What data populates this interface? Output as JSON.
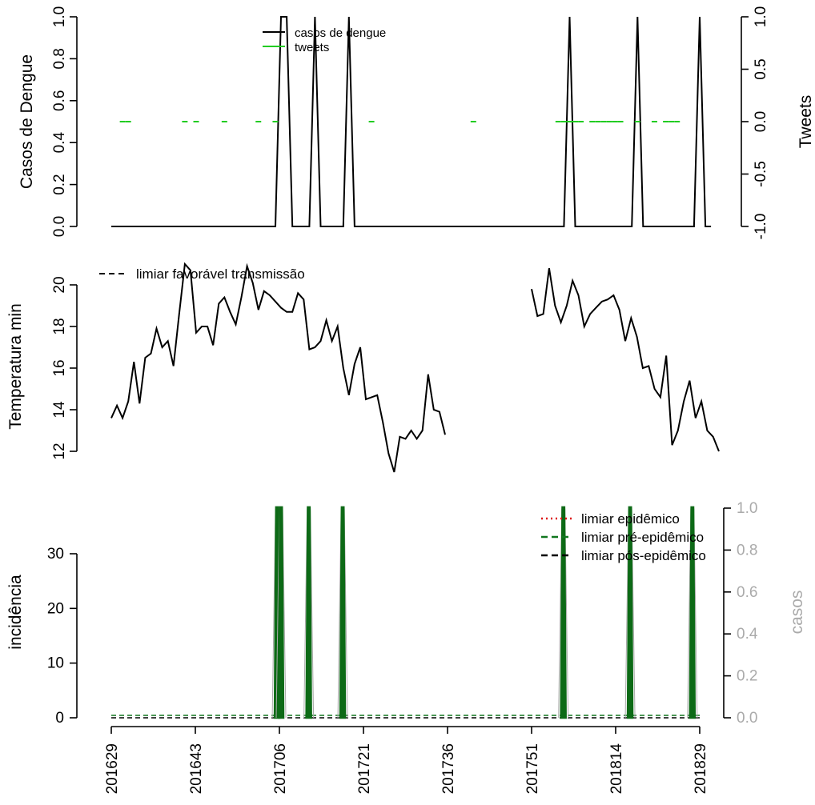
{
  "chart_data": [
    {
      "type": "line",
      "ylabel": "Casos de Dengue",
      "ylabel_right": "Tweets",
      "ylim": [
        0,
        1
      ],
      "ylim_right": [
        -1,
        1
      ],
      "yticks": [
        "0.0",
        "0.2",
        "0.4",
        "0.6",
        "0.8",
        "1.0"
      ],
      "yticks_right": [
        "-1.0",
        "-0.5",
        "0.0",
        "0.5",
        "1.0"
      ],
      "legend": {
        "position": "top-center",
        "entries": [
          "casos de dengue",
          "tweets"
        ]
      },
      "colors": {
        "casos": "#000000",
        "tweets": "#22cc22"
      },
      "x_index_range": [
        0,
        104
      ],
      "series": [
        {
          "name": "casos de dengue",
          "axis": "left",
          "values": [
            [
              0,
              0
            ],
            [
              29,
              0
            ],
            [
              30,
              1
            ],
            [
              31,
              1
            ],
            [
              32,
              0
            ],
            [
              35,
              0
            ],
            [
              36,
              1
            ],
            [
              37,
              0
            ],
            [
              41,
              0
            ],
            [
              42,
              1
            ],
            [
              43,
              0
            ],
            [
              80,
              0
            ],
            [
              81,
              1
            ],
            [
              82,
              0
            ],
            [
              92,
              0
            ],
            [
              93,
              1
            ],
            [
              94,
              0
            ],
            [
              103,
              0
            ],
            [
              104,
              1
            ],
            [
              105,
              0
            ],
            [
              106,
              0
            ]
          ]
        },
        {
          "name": "tweets",
          "axis": "right",
          "values": [
            [
              2,
              0
            ],
            [
              3,
              0
            ],
            [
              13,
              0
            ],
            [
              15,
              0
            ],
            [
              20,
              0
            ],
            [
              26,
              0
            ],
            [
              29,
              0
            ],
            [
              46,
              0
            ],
            [
              64,
              0
            ],
            [
              79,
              0
            ],
            [
              80,
              0
            ],
            [
              81,
              0
            ],
            [
              82,
              0
            ],
            [
              83,
              0
            ],
            [
              85,
              0
            ],
            [
              86,
              0
            ],
            [
              87,
              0
            ],
            [
              88,
              0
            ],
            [
              89,
              0
            ],
            [
              90,
              0
            ],
            [
              93,
              0
            ],
            [
              96,
              0
            ],
            [
              98,
              0
            ],
            [
              99,
              0
            ],
            [
              100,
              0
            ]
          ]
        }
      ]
    },
    {
      "type": "line",
      "ylabel": "Temperatura min",
      "ylim": [
        11.7,
        20.9
      ],
      "yticks": [
        "12",
        "14",
        "16",
        "18",
        "20"
      ],
      "legend": {
        "position": "top-left",
        "entries": [
          "limiar favorável transmissão"
        ]
      },
      "series": [
        {
          "name": "temperatura",
          "values": [
            13.6,
            14.2,
            13.6,
            14.4,
            16.3,
            14.3,
            16.5,
            16.7,
            17.9,
            17.0,
            17.3,
            16.1,
            18.6,
            21.0,
            20.7,
            17.7,
            18.0,
            18.0,
            17.1,
            19.1,
            19.4,
            18.7,
            18.1,
            19.4,
            20.9,
            20.1,
            18.8,
            19.7,
            19.5,
            19.2,
            18.9,
            18.7,
            18.7,
            19.6,
            19.3,
            16.9,
            17.0,
            17.3,
            18.3,
            17.3,
            18.0,
            16.0,
            14.7,
            16.2,
            17.0,
            14.5,
            14.6,
            14.7,
            13.4,
            11.9,
            11.0,
            12.7,
            12.6,
            13.0,
            12.6,
            13.0,
            15.7,
            14.0,
            13.9,
            12.8,
            null,
            null,
            null,
            null,
            null,
            null,
            null,
            null,
            null,
            null,
            null,
            null,
            null,
            null,
            null,
            null,
            null,
            null,
            null,
            null,
            null,
            null,
            null,
            null,
            null,
            null,
            null,
            null,
            null,
            null,
            null,
            null,
            null,
            null,
            null,
            null,
            null,
            null,
            null,
            null,
            null,
            null,
            null,
            null,
            null,
            null,
            null,
            null,
            null,
            null,
            null,
            null,
            null,
            null,
            null,
            null,
            null,
            null,
            null,
            null,
            null,
            null,
            null,
            null,
            null,
            null,
            null,
            null,
            null,
            null,
            null,
            null,
            null,
            null,
            null,
            null,
            null,
            null,
            null,
            null,
            null,
            null,
            null,
            null,
            null,
            null,
            null,
            null,
            null,
            null,
            null,
            null,
            null,
            null,
            null,
            null
          ]
        },
        {
          "name": "temperatura_2",
          "start_index": 74,
          "values": [
            19.8,
            18.5,
            18.6,
            20.8,
            19.0,
            18.2,
            19.0,
            20.2,
            19.5,
            18.0,
            18.6,
            18.9,
            19.2,
            19.3,
            19.5,
            18.8,
            17.3,
            18.4,
            17.5,
            16.0,
            16.1,
            15.0,
            14.6,
            16.6,
            12.3,
            13.0,
            14.4,
            15.4,
            13.6,
            14.4,
            13.0,
            12.7,
            12.0
          ]
        }
      ]
    },
    {
      "type": "line",
      "ylabel": "incidência",
      "ylabel_right": "casos",
      "ylim": [
        0,
        38.5
      ],
      "ylim_right": [
        0,
        1
      ],
      "yticks": [
        "0",
        "10",
        "20",
        "30"
      ],
      "yticks_right": [
        "0.0",
        "0.2",
        "0.4",
        "0.6",
        "0.8",
        "1.0"
      ],
      "legend": {
        "position": "top-right",
        "entries": [
          {
            "label": "limiar epidêmico",
            "color": "#dd1111",
            "dash": "dotted"
          },
          {
            "label": "limiar pré-epidêmico",
            "color": "#11771f",
            "dash": "dashed"
          },
          {
            "label": "limiar pós-epidêmico",
            "color": "#000000",
            "dash": "dashed"
          }
        ]
      },
      "x_tick_labels": [
        "201629",
        "201643",
        "201706",
        "201721",
        "201736",
        "201751",
        "201814",
        "201829"
      ],
      "colors": {
        "incidence": "#0d6a16",
        "casos_axis": "#aaaaaa"
      },
      "peaks_x_index": [
        29.3,
        30.0,
        34.9,
        40.9,
        79.9,
        91.7,
        102.7
      ]
    }
  ]
}
